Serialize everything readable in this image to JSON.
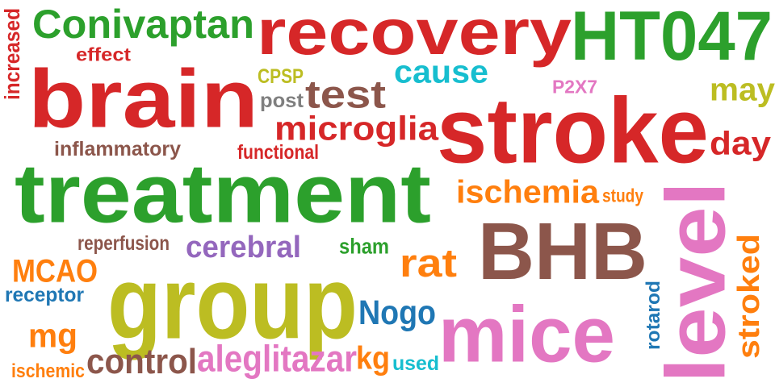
{
  "palette": {
    "red": "#d62728",
    "green": "#2ca02c",
    "brown": "#8c564b",
    "olive": "#bcbd22",
    "pink": "#e377c2",
    "orange": "#ff7f0e",
    "blue": "#1f77b4",
    "cyan": "#17becf",
    "purple": "#9467bd",
    "gray": "#7f7f7f"
  },
  "words": [
    {
      "text": "recovery",
      "color": "red"
    },
    {
      "text": "HT047",
      "color": "green"
    },
    {
      "text": "Conivaptan",
      "color": "green"
    },
    {
      "text": "brain",
      "color": "red"
    },
    {
      "text": "stroke",
      "color": "red"
    },
    {
      "text": "treatment",
      "color": "green"
    },
    {
      "text": "group",
      "color": "olive"
    },
    {
      "text": "BHB",
      "color": "brown"
    },
    {
      "text": "mice",
      "color": "pink"
    },
    {
      "text": "level",
      "color": "pink"
    },
    {
      "text": "test",
      "color": "brown"
    },
    {
      "text": "microglia",
      "color": "red"
    },
    {
      "text": "cause",
      "color": "cyan"
    },
    {
      "text": "may",
      "color": "olive"
    },
    {
      "text": "day",
      "color": "red"
    },
    {
      "text": "ischemia",
      "color": "orange"
    },
    {
      "text": "cerebral",
      "color": "purple"
    },
    {
      "text": "rat",
      "color": "orange"
    },
    {
      "text": "Nogo",
      "color": "blue"
    },
    {
      "text": "control",
      "color": "brown"
    },
    {
      "text": "aleglitazar",
      "color": "pink"
    },
    {
      "text": "MCAO",
      "color": "orange"
    },
    {
      "text": "mg",
      "color": "orange"
    },
    {
      "text": "kg",
      "color": "orange"
    },
    {
      "text": "stroked",
      "color": "orange"
    },
    {
      "text": "effect",
      "color": "red"
    },
    {
      "text": "increased",
      "color": "red"
    },
    {
      "text": "CPSP",
      "color": "olive"
    },
    {
      "text": "post",
      "color": "gray"
    },
    {
      "text": "P2X7",
      "color": "pink"
    },
    {
      "text": "inflammatory",
      "color": "brown"
    },
    {
      "text": "functional",
      "color": "red"
    },
    {
      "text": "study",
      "color": "orange"
    },
    {
      "text": "reperfusion",
      "color": "brown"
    },
    {
      "text": "sham",
      "color": "green"
    },
    {
      "text": "receptor",
      "color": "blue"
    },
    {
      "text": "rotarod",
      "color": "blue"
    },
    {
      "text": "ischemic",
      "color": "orange"
    },
    {
      "text": "used",
      "color": "cyan"
    }
  ]
}
